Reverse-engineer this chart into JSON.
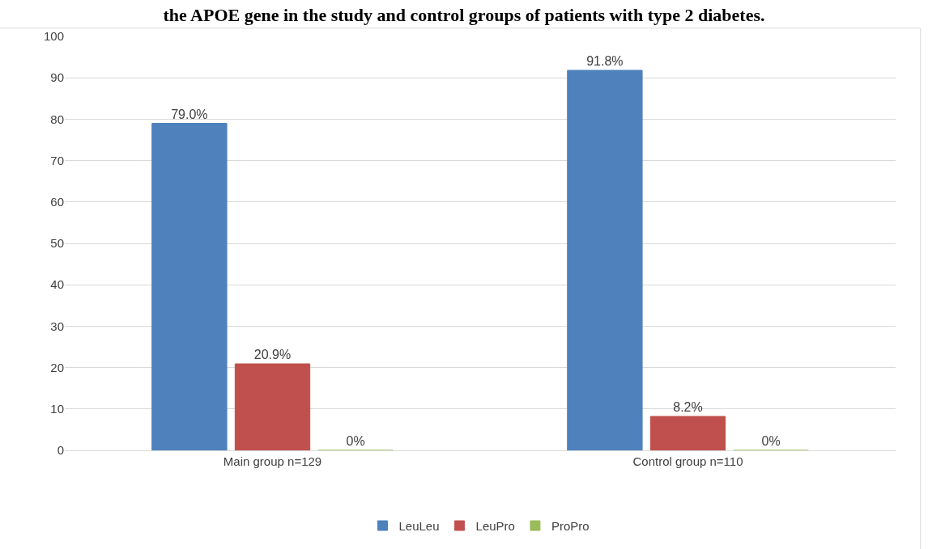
{
  "chart_data": {
    "type": "bar",
    "title": "the APOE gene in the study and control groups of patients with type 2 diabetes.",
    "categories": [
      "Main group n=129",
      "Control group n=110"
    ],
    "series": [
      {
        "name": "LeuLeu",
        "color": "#4f81bd",
        "values": [
          79.0,
          91.8
        ],
        "value_labels": [
          "79.0%",
          "91.8%"
        ]
      },
      {
        "name": "LeuPro",
        "color": "#c0504d",
        "values": [
          20.9,
          8.2
        ],
        "value_labels": [
          "20.9%",
          "8.2%"
        ]
      },
      {
        "name": "ProPro",
        "color": "#9bbb59",
        "values": [
          0,
          0
        ],
        "value_labels": [
          "0%",
          "0%"
        ]
      }
    ],
    "ylim": [
      0,
      100
    ],
    "yticks": [
      0,
      10,
      20,
      30,
      40,
      50,
      60,
      70,
      80,
      90,
      100
    ],
    "grid": "y",
    "legend": "bottom"
  }
}
